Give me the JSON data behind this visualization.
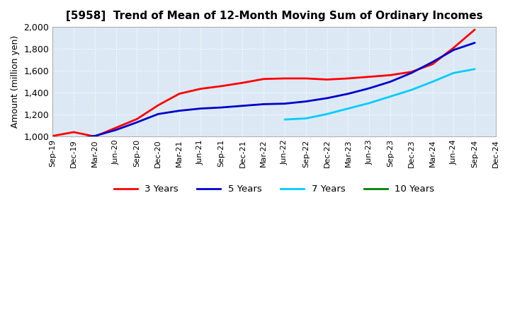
{
  "title": "[5958]  Trend of Mean of 12-Month Moving Sum of Ordinary Incomes",
  "ylabel": "Amount (million yen)",
  "background_color": "#ffffff",
  "plot_bg_color": "#dce9f5",
  "grid_color": "#ffffff",
  "ylim": [
    1000,
    2000
  ],
  "yticks": [
    1000,
    1200,
    1400,
    1600,
    1800,
    2000
  ],
  "x_labels": [
    "Sep-19",
    "Dec-19",
    "Mar-20",
    "Jun-20",
    "Sep-20",
    "Dec-20",
    "Mar-21",
    "Jun-21",
    "Sep-21",
    "Dec-21",
    "Mar-22",
    "Jun-22",
    "Sep-22",
    "Dec-22",
    "Mar-23",
    "Jun-23",
    "Sep-23",
    "Dec-23",
    "Mar-24",
    "Jun-24",
    "Sep-24",
    "Dec-24"
  ],
  "series": [
    {
      "name": "3 Years",
      "color": "#ff0000",
      "data": [
        1005,
        1040,
        1000,
        1080,
        1160,
        1285,
        1390,
        1435,
        1460,
        1490,
        1525,
        1530,
        1530,
        1520,
        1530,
        1545,
        1560,
        1590,
        1660,
        1810,
        1975,
        null
      ]
    },
    {
      "name": "5 Years",
      "color": "#0000cc",
      "data": [
        null,
        975,
        1005,
        1060,
        1130,
        1205,
        1235,
        1255,
        1265,
        1280,
        1295,
        1300,
        1320,
        1350,
        1390,
        1440,
        1500,
        1580,
        1680,
        1790,
        1855,
        null
      ]
    },
    {
      "name": "7 Years",
      "color": "#00ccff",
      "data": [
        null,
        null,
        null,
        null,
        null,
        null,
        null,
        null,
        null,
        null,
        null,
        1155,
        1165,
        1205,
        1255,
        1305,
        1365,
        1425,
        1500,
        1580,
        1615,
        null
      ]
    },
    {
      "name": "10 Years",
      "color": "#008000",
      "data": [
        null,
        null,
        null,
        null,
        null,
        null,
        null,
        null,
        null,
        null,
        null,
        null,
        null,
        null,
        null,
        null,
        null,
        null,
        null,
        null,
        null,
        null
      ]
    }
  ],
  "legend_labels": [
    "3 Years",
    "5 Years",
    "7 Years",
    "10 Years"
  ],
  "legend_colors": [
    "#ff0000",
    "#0000cc",
    "#00ccff",
    "#008000"
  ]
}
